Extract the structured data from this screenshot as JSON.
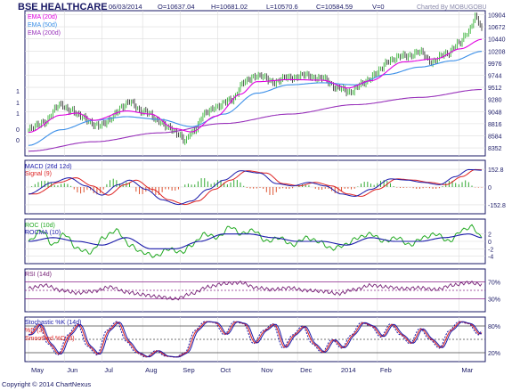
{
  "header": {
    "title": "BSE HEALTHCARE",
    "date": "06/03/2014",
    "open": "O=10637.04",
    "high": "H=10681.02",
    "low": "L=10570.6",
    "close": "C=10584.59",
    "volume": "V=0",
    "credit": "Charted By MOBUGOBU"
  },
  "copyright": "Copyright © 2014 ChartNexus",
  "colors": {
    "panel_bg": "#ffffff",
    "frame": "#1a1a66",
    "grid": "#dcdcdc",
    "ema20": "#e000e0",
    "ema50": "#3b8fe8",
    "ema200": "#9933bb",
    "candle": "#222222",
    "candle_up": "#22aa22",
    "macd": "#1a1aaa",
    "signal": "#dd2222",
    "hist_pos": "#33aa33",
    "hist_neg": "#dd5533",
    "roc": "#22aa22",
    "rocma": "#1a1aaa",
    "rsi": "#772277",
    "stoch_k": "#1a1aaa",
    "stoch_d": "#dd2222",
    "stoch_smooth": "#1a1aaa",
    "band_line": "#882288"
  },
  "chart_data": [
    {
      "type": "candlestick",
      "title": "BSE HEALTHCARE",
      "legend": [
        "EMA (20d)",
        "EMA (50d)",
        "EMA (200d)"
      ],
      "legend_placement": "top-left",
      "y_ticks": [
        10904,
        10672,
        10440,
        10208,
        9976,
        9744,
        9512,
        9280,
        9048,
        8816,
        8584,
        8352
      ],
      "left_stub_labels": [
        "1",
        "1",
        "1",
        "0",
        "0"
      ],
      "ylim": [
        8200,
        10980
      ],
      "x_categories": [
        "May",
        "Jun",
        "Jul",
        "Aug",
        "Sep",
        "Oct",
        "Nov",
        "Dec",
        "2014",
        "Feb",
        "Mar"
      ],
      "price_keypoints": [
        [
          0,
          8700
        ],
        [
          10,
          8860
        ],
        [
          20,
          9200
        ],
        [
          25,
          9060
        ],
        [
          32,
          8980
        ],
        [
          40,
          8780
        ],
        [
          48,
          8840
        ],
        [
          58,
          9160
        ],
        [
          62,
          9220
        ],
        [
          70,
          9060
        ],
        [
          80,
          8880
        ],
        [
          86,
          8720
        ],
        [
          92,
          8640
        ],
        [
          96,
          8470
        ],
        [
          100,
          8640
        ],
        [
          108,
          9000
        ],
        [
          116,
          9160
        ],
        [
          124,
          9260
        ],
        [
          132,
          9600
        ],
        [
          140,
          9750
        ],
        [
          150,
          9620
        ],
        [
          160,
          9700
        ],
        [
          170,
          9740
        ],
        [
          180,
          9680
        ],
        [
          190,
          9500
        ],
        [
          196,
          9420
        ],
        [
          204,
          9560
        ],
        [
          214,
          9800
        ],
        [
          222,
          10050
        ],
        [
          232,
          10120
        ],
        [
          240,
          10180
        ],
        [
          248,
          10000
        ],
        [
          256,
          10160
        ],
        [
          264,
          10340
        ],
        [
          270,
          10600
        ],
        [
          274,
          10850
        ],
        [
          276,
          10760
        ],
        [
          278,
          10600
        ]
      ],
      "ema20_keypoints": [
        [
          0,
          8650
        ],
        [
          20,
          8980
        ],
        [
          30,
          9020
        ],
        [
          40,
          8880
        ],
        [
          60,
          9060
        ],
        [
          75,
          9000
        ],
        [
          90,
          8720
        ],
        [
          100,
          8660
        ],
        [
          115,
          8960
        ],
        [
          130,
          9380
        ],
        [
          140,
          9620
        ],
        [
          160,
          9660
        ],
        [
          180,
          9650
        ],
        [
          196,
          9500
        ],
        [
          210,
          9640
        ],
        [
          230,
          10000
        ],
        [
          250,
          10060
        ],
        [
          265,
          10250
        ],
        [
          278,
          10430
        ]
      ],
      "ema50_keypoints": [
        [
          0,
          8400
        ],
        [
          20,
          8700
        ],
        [
          40,
          8880
        ],
        [
          60,
          8950
        ],
        [
          80,
          8900
        ],
        [
          100,
          8760
        ],
        [
          120,
          9000
        ],
        [
          140,
          9400
        ],
        [
          160,
          9560
        ],
        [
          180,
          9600
        ],
        [
          200,
          9560
        ],
        [
          220,
          9760
        ],
        [
          240,
          9900
        ],
        [
          260,
          10020
        ],
        [
          278,
          10200
        ]
      ],
      "ema200_keypoints": [
        [
          0,
          8290
        ],
        [
          40,
          8470
        ],
        [
          80,
          8640
        ],
        [
          120,
          8820
        ],
        [
          160,
          9000
        ],
        [
          200,
          9180
        ],
        [
          240,
          9320
        ],
        [
          278,
          9470
        ]
      ]
    },
    {
      "type": "line",
      "legend": [
        "MACD (26d 12d)",
        "Signal (9)"
      ],
      "y_ticks": [
        152.8,
        0,
        -152.8
      ],
      "ylim": [
        -230,
        230
      ],
      "macd_keypoints": [
        [
          0,
          -60
        ],
        [
          15,
          40
        ],
        [
          25,
          80
        ],
        [
          35,
          10
        ],
        [
          45,
          -70
        ],
        [
          55,
          20
        ],
        [
          62,
          60
        ],
        [
          72,
          -20
        ],
        [
          82,
          -110
        ],
        [
          92,
          -150
        ],
        [
          100,
          -120
        ],
        [
          110,
          -20
        ],
        [
          120,
          60
        ],
        [
          130,
          140
        ],
        [
          142,
          120
        ],
        [
          152,
          30
        ],
        [
          162,
          10
        ],
        [
          172,
          40
        ],
        [
          182,
          10
        ],
        [
          192,
          -60
        ],
        [
          200,
          -80
        ],
        [
          210,
          -20
        ],
        [
          222,
          70
        ],
        [
          232,
          60
        ],
        [
          242,
          40
        ],
        [
          252,
          20
        ],
        [
          262,
          90
        ],
        [
          270,
          150
        ],
        [
          278,
          145
        ]
      ],
      "signal_lag": 4
    },
    {
      "type": "line",
      "legend": [
        "ROC (10d)",
        "ROCMA (10)"
      ],
      "y_ticks": [
        2,
        0,
        -2,
        -4
      ],
      "ylim": [
        -6,
        6
      ],
      "roc_keypoints": [
        [
          0,
          0
        ],
        [
          8,
          3
        ],
        [
          15,
          -1
        ],
        [
          22,
          2
        ],
        [
          30,
          -2
        ],
        [
          38,
          -3
        ],
        [
          46,
          1
        ],
        [
          54,
          3
        ],
        [
          62,
          -1
        ],
        [
          70,
          -3
        ],
        [
          78,
          -4
        ],
        [
          86,
          -2
        ],
        [
          94,
          -3
        ],
        [
          100,
          -1
        ],
        [
          108,
          2
        ],
        [
          116,
          1
        ],
        [
          124,
          4
        ],
        [
          130,
          2
        ],
        [
          138,
          3
        ],
        [
          146,
          0
        ],
        [
          154,
          1
        ],
        [
          162,
          -1
        ],
        [
          170,
          1
        ],
        [
          178,
          0
        ],
        [
          186,
          -2
        ],
        [
          194,
          -1
        ],
        [
          202,
          1
        ],
        [
          210,
          2
        ],
        [
          218,
          0
        ],
        [
          226,
          1
        ],
        [
          234,
          -1
        ],
        [
          242,
          1
        ],
        [
          250,
          2
        ],
        [
          258,
          0
        ],
        [
          266,
          3
        ],
        [
          272,
          4
        ],
        [
          278,
          1
        ]
      ],
      "rocma_keypoints": [
        [
          0,
          0
        ],
        [
          15,
          1
        ],
        [
          30,
          0
        ],
        [
          45,
          -1
        ],
        [
          60,
          1
        ],
        [
          75,
          -2
        ],
        [
          90,
          -2
        ],
        [
          105,
          0
        ],
        [
          120,
          2
        ],
        [
          135,
          2
        ],
        [
          150,
          1
        ],
        [
          165,
          0
        ],
        [
          180,
          0
        ],
        [
          195,
          -1
        ],
        [
          210,
          1
        ],
        [
          225,
          0
        ],
        [
          240,
          0
        ],
        [
          255,
          1
        ],
        [
          270,
          2
        ],
        [
          278,
          1
        ]
      ]
    },
    {
      "type": "line",
      "legend": [
        "RSI (14d)"
      ],
      "y_ticks": [
        "70%",
        "30%"
      ],
      "ylim": [
        0,
        100
      ],
      "rsi_keypoints": [
        [
          0,
          55
        ],
        [
          10,
          62
        ],
        [
          20,
          50
        ],
        [
          30,
          44
        ],
        [
          40,
          48
        ],
        [
          50,
          58
        ],
        [
          60,
          46
        ],
        [
          70,
          40
        ],
        [
          80,
          35
        ],
        [
          90,
          30
        ],
        [
          100,
          42
        ],
        [
          110,
          58
        ],
        [
          120,
          66
        ],
        [
          130,
          68
        ],
        [
          140,
          56
        ],
        [
          150,
          52
        ],
        [
          160,
          56
        ],
        [
          170,
          50
        ],
        [
          180,
          48
        ],
        [
          190,
          42
        ],
        [
          200,
          52
        ],
        [
          210,
          62
        ],
        [
          220,
          58
        ],
        [
          230,
          54
        ],
        [
          240,
          56
        ],
        [
          250,
          52
        ],
        [
          260,
          62
        ],
        [
          270,
          68
        ],
        [
          278,
          64
        ]
      ]
    },
    {
      "type": "line",
      "legend": [
        "Stochastic %K (14d)",
        "%D (3)",
        "Smoothed %D (3)"
      ],
      "y_ticks": [
        "80%",
        "20%"
      ],
      "ylim": [
        0,
        100
      ],
      "stoch_keypoints": [
        [
          0,
          60
        ],
        [
          6,
          85
        ],
        [
          12,
          40
        ],
        [
          18,
          15
        ],
        [
          24,
          60
        ],
        [
          30,
          85
        ],
        [
          36,
          35
        ],
        [
          42,
          15
        ],
        [
          48,
          70
        ],
        [
          54,
          90
        ],
        [
          60,
          45
        ],
        [
          66,
          20
        ],
        [
          72,
          10
        ],
        [
          78,
          25
        ],
        [
          84,
          12
        ],
        [
          90,
          10
        ],
        [
          96,
          20
        ],
        [
          102,
          70
        ],
        [
          108,
          90
        ],
        [
          114,
          88
        ],
        [
          120,
          60
        ],
        [
          126,
          90
        ],
        [
          132,
          85
        ],
        [
          138,
          40
        ],
        [
          144,
          70
        ],
        [
          150,
          85
        ],
        [
          156,
          30
        ],
        [
          162,
          60
        ],
        [
          168,
          80
        ],
        [
          174,
          40
        ],
        [
          180,
          20
        ],
        [
          186,
          50
        ],
        [
          192,
          30
        ],
        [
          198,
          60
        ],
        [
          204,
          88
        ],
        [
          210,
          80
        ],
        [
          216,
          55
        ],
        [
          222,
          85
        ],
        [
          228,
          60
        ],
        [
          234,
          40
        ],
        [
          240,
          75
        ],
        [
          246,
          50
        ],
        [
          252,
          30
        ],
        [
          258,
          70
        ],
        [
          264,
          90
        ],
        [
          270,
          85
        ],
        [
          276,
          60
        ],
        [
          278,
          70
        ]
      ]
    }
  ]
}
